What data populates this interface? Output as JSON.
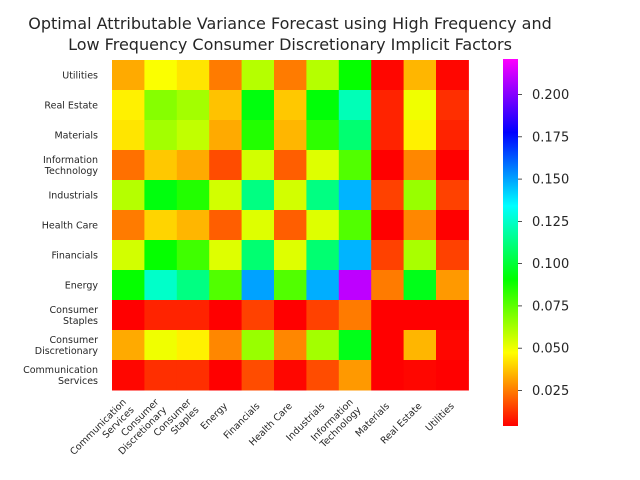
{
  "chart_data": {
    "type": "heatmap",
    "title_lines": [
      "Optimal Attributable Variance Forecast using High Frequency and",
      "Low Frequency Consumer Discretionary Implicit Factors"
    ],
    "xlabel": "",
    "ylabel": "",
    "x_categories": [
      [
        "Communication",
        "Services"
      ],
      [
        "Consumer",
        "Discretionary"
      ],
      [
        "Consumer",
        "Staples"
      ],
      [
        "Energy"
      ],
      [
        "Financials"
      ],
      [
        "Health Care"
      ],
      [
        "Industrials"
      ],
      [
        "Information",
        "Technology"
      ],
      [
        "Materials"
      ],
      [
        "Real Estate"
      ],
      [
        "Utilities"
      ]
    ],
    "y_categories": [
      [
        "Utilities"
      ],
      [
        "Real Estate"
      ],
      [
        "Materials"
      ],
      [
        "Information",
        "Technology"
      ],
      [
        "Industrials"
      ],
      [
        "Health Care"
      ],
      [
        "Financials"
      ],
      [
        "Energy"
      ],
      [
        "Consumer",
        "Staples"
      ],
      [
        "Consumer",
        "Discretionary"
      ],
      [
        "Communication",
        "Services"
      ]
    ],
    "values": [
      [
        0.033,
        0.048,
        0.043,
        0.025,
        0.06,
        0.025,
        0.06,
        0.09,
        0.005,
        0.035,
        0.005
      ],
      [
        0.045,
        0.068,
        0.063,
        0.037,
        0.093,
        0.038,
        0.092,
        0.122,
        0.01,
        0.05,
        0.012
      ],
      [
        0.043,
        0.063,
        0.058,
        0.033,
        0.085,
        0.035,
        0.083,
        0.11,
        0.01,
        0.045,
        0.01
      ],
      [
        0.023,
        0.038,
        0.033,
        0.017,
        0.055,
        0.02,
        0.053,
        0.077,
        0.004,
        0.027,
        0.004
      ],
      [
        0.06,
        0.093,
        0.085,
        0.055,
        0.113,
        0.055,
        0.113,
        0.147,
        0.015,
        0.065,
        0.015
      ],
      [
        0.025,
        0.04,
        0.035,
        0.02,
        0.053,
        0.02,
        0.053,
        0.077,
        0.004,
        0.027,
        0.004
      ],
      [
        0.055,
        0.09,
        0.08,
        0.053,
        0.11,
        0.053,
        0.11,
        0.147,
        0.015,
        0.062,
        0.015
      ],
      [
        0.09,
        0.125,
        0.113,
        0.077,
        0.15,
        0.077,
        0.148,
        0.21,
        0.025,
        0.095,
        0.03
      ],
      [
        0.004,
        0.01,
        0.01,
        0.004,
        0.015,
        0.004,
        0.015,
        0.025,
        0.002,
        0.004,
        0.002
      ],
      [
        0.033,
        0.05,
        0.045,
        0.027,
        0.065,
        0.027,
        0.063,
        0.095,
        0.004,
        0.035,
        0.005
      ],
      [
        0.005,
        0.012,
        0.012,
        0.004,
        0.017,
        0.005,
        0.017,
        0.03,
        0.002,
        0.005,
        0.002
      ]
    ],
    "colormap": "hsv",
    "vmin": 0.004,
    "vmax": 0.221,
    "colorbar_ticks": [
      0.025,
      0.05,
      0.075,
      0.1,
      0.125,
      0.15,
      0.175,
      0.2
    ],
    "colorbar_tick_labels": [
      "0.025",
      "0.050",
      "0.075",
      "0.100",
      "0.125",
      "0.150",
      "0.175",
      "0.200"
    ],
    "grid": false
  }
}
